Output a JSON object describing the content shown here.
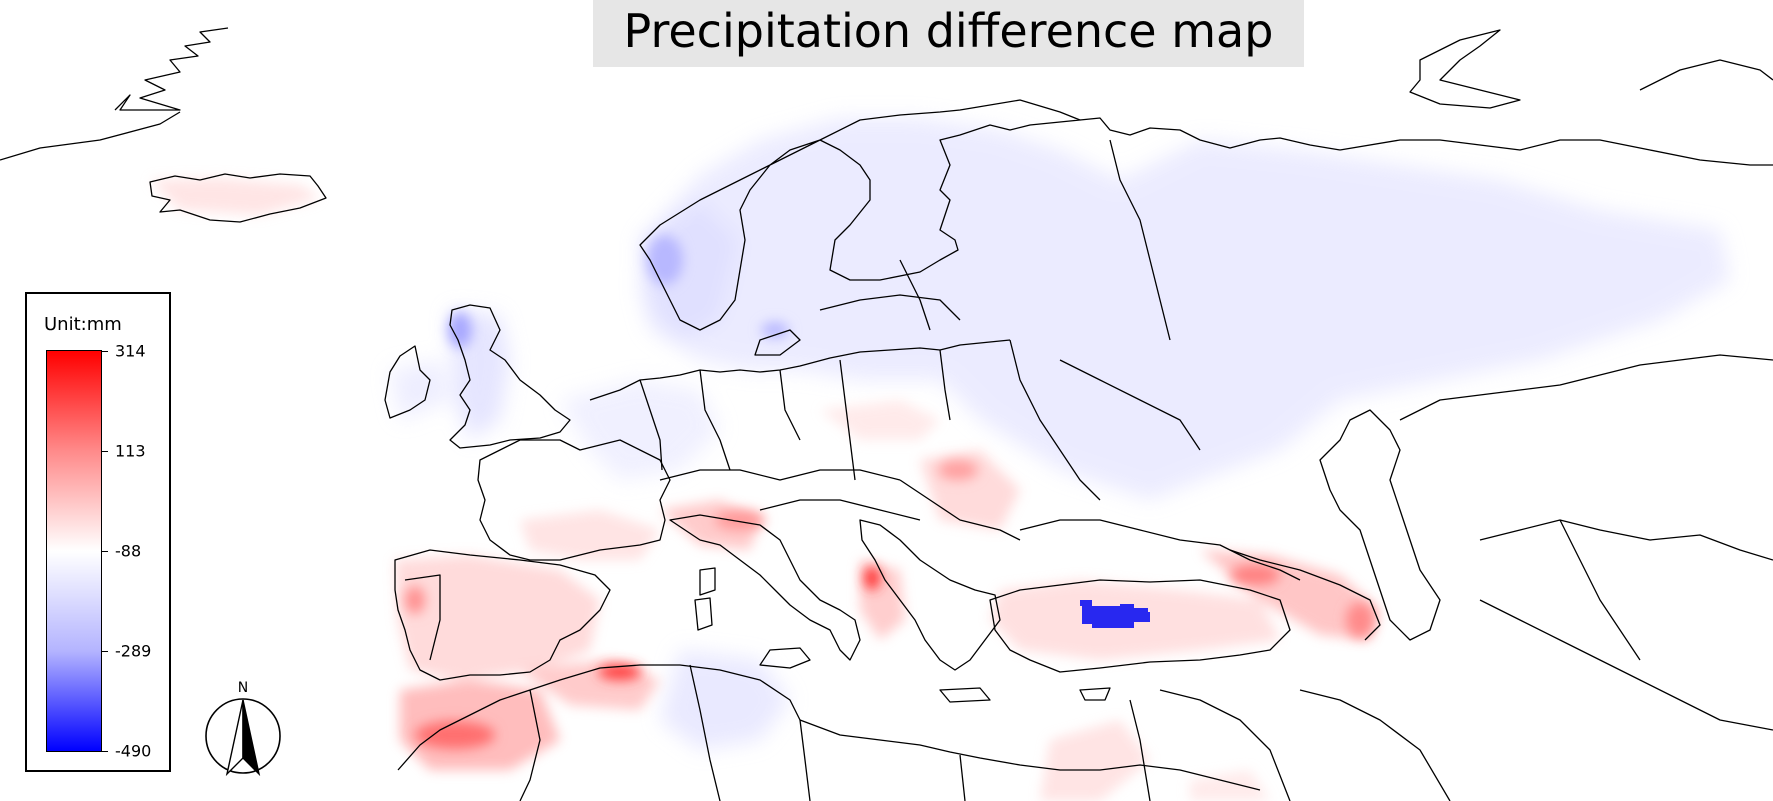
{
  "title": "Precipitation difference map",
  "legend": {
    "unit_label": "Unit:mm",
    "ticks": [
      "314",
      "113",
      "-88",
      "-289",
      "-490"
    ],
    "colors": {
      "max": "#ff0000",
      "mid": "#ffffff",
      "min": "#0000ff"
    }
  },
  "north_arrow": {
    "label": "N"
  },
  "colors": {
    "positive": "#ff3b3b",
    "negative": "#5a5aff",
    "border": "#000000",
    "title_bg": "#e6e6e6"
  }
}
